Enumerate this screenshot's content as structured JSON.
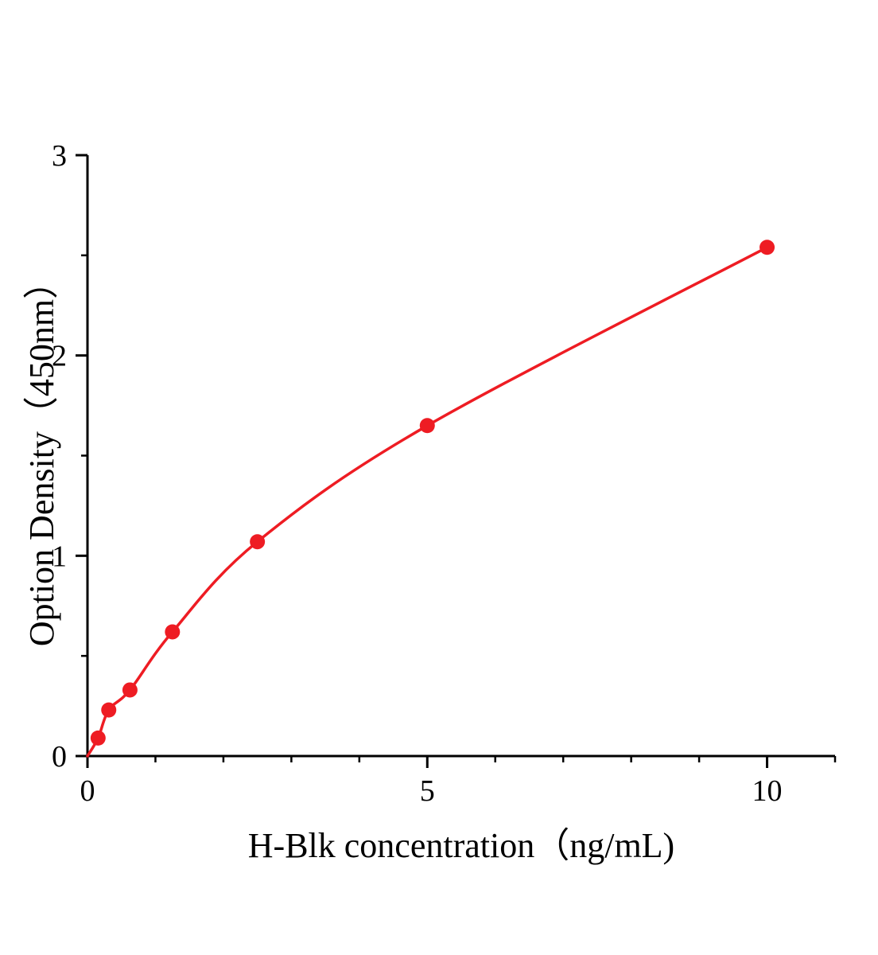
{
  "figure": {
    "background": "#ffffff"
  },
  "chart_data": {
    "type": "line",
    "marker": "circle",
    "title": "",
    "xlabel": "H-Blk concentration（ng/mL)",
    "ylabel": "Option Density（450nm）",
    "x": [
      0.156,
      0.313,
      0.625,
      1.25,
      2.5,
      5,
      10
    ],
    "y": [
      0.09,
      0.23,
      0.33,
      0.62,
      1.07,
      1.65,
      2.54
    ],
    "curve_start": [
      0,
      0
    ],
    "xlim": [
      0,
      11
    ],
    "ylim": [
      0,
      3
    ],
    "x_major_ticks": [
      0,
      5,
      10
    ],
    "x_minor_ticks": [
      1,
      2,
      3,
      4,
      6,
      7,
      8,
      9,
      11
    ],
    "y_major_ticks": [
      0,
      1,
      2,
      3
    ],
    "y_minor_ticks": [
      0.5,
      1.5,
      2.5
    ],
    "line_color": "#ee1c23",
    "axis_color": "#000000",
    "grid": false,
    "legend": false
  }
}
